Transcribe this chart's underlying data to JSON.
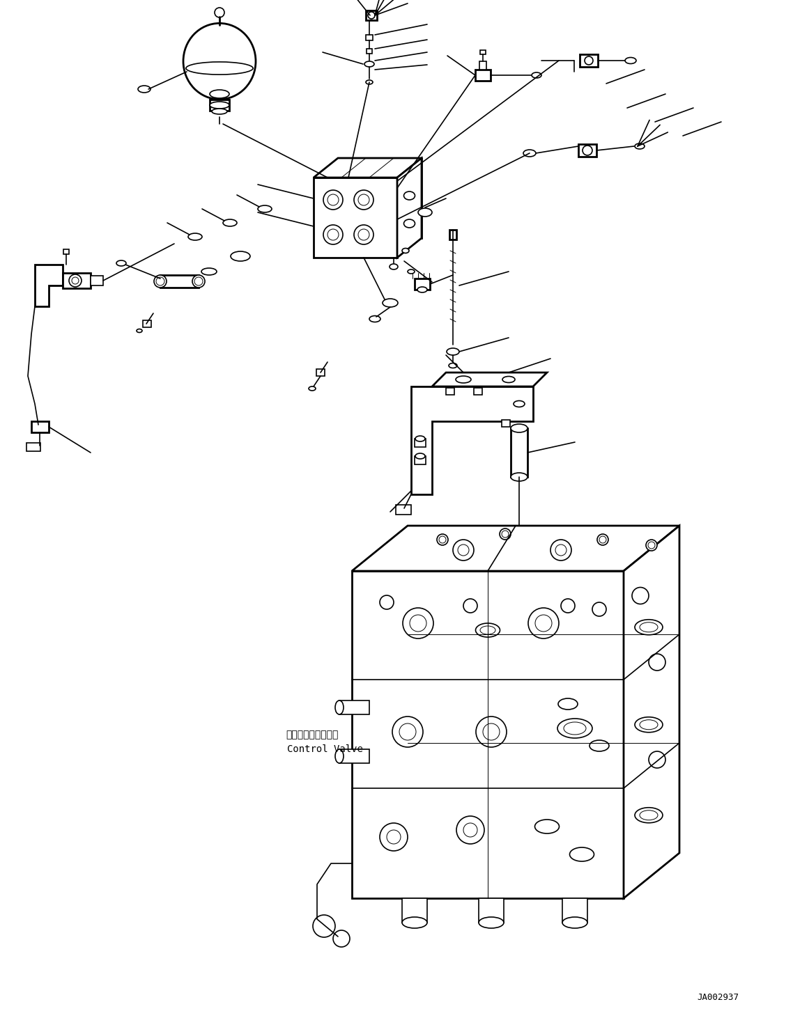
{
  "background_color": "#ffffff",
  "line_color": "#000000",
  "lw": 1.2,
  "lw_thick": 2.0,
  "lw_thin": 0.7,
  "fig_width": 11.61,
  "fig_height": 14.62,
  "dpi": 100,
  "watermark": "JA002937",
  "cv_label_jp": "コントロールバルブ",
  "cv_label_en": "Control Valve"
}
